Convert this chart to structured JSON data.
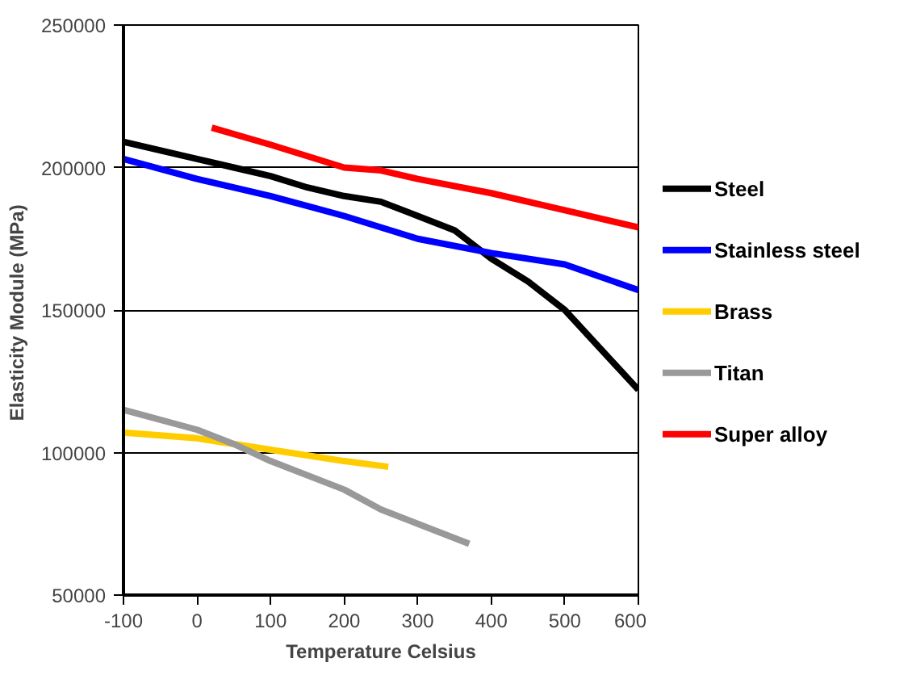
{
  "chart_data": {
    "type": "line",
    "xlabel": "Temperature Celsius",
    "ylabel": "Elasticity Module  (MPa)",
    "xlim": [
      -100,
      600
    ],
    "xticks": [
      -100,
      0,
      100,
      200,
      300,
      400,
      500,
      600
    ],
    "ylim": [
      50000,
      250000
    ],
    "yticks": [
      50000,
      100000,
      150000,
      200000,
      250000
    ],
    "grid": "y",
    "legend": "right",
    "line_style": "solid",
    "series": [
      {
        "name": "Steel",
        "color": "#000000",
        "x": [
          -100,
          0,
          50,
          100,
          150,
          200,
          250,
          300,
          350,
          400,
          450,
          500,
          600
        ],
        "values": [
          209000,
          203000,
          200000,
          197000,
          193000,
          190000,
          188000,
          183000,
          178000,
          168000,
          160000,
          150000,
          122000
        ]
      },
      {
        "name": "Stainless steel",
        "color": "#0000ff",
        "x": [
          -100,
          0,
          100,
          200,
          300,
          400,
          500,
          600
        ],
        "values": [
          203000,
          196000,
          190000,
          183000,
          175000,
          170000,
          166000,
          157000
        ]
      },
      {
        "name": "Brass",
        "color": "#ffcc00",
        "x": [
          -100,
          0,
          100,
          200,
          260
        ],
        "values": [
          107000,
          105000,
          101000,
          97000,
          95000
        ]
      },
      {
        "name": "Titan",
        "color": "#999999",
        "x": [
          -100,
          0,
          50,
          100,
          200,
          250,
          300,
          370
        ],
        "values": [
          115000,
          108000,
          103000,
          97000,
          87000,
          80000,
          75000,
          68000
        ]
      },
      {
        "name": "Super alloy",
        "color": "#ff0000",
        "x": [
          20,
          100,
          200,
          250,
          300,
          400,
          500,
          600
        ],
        "values": [
          214000,
          208000,
          200000,
          199000,
          196000,
          191000,
          185000,
          179000
        ]
      }
    ]
  }
}
